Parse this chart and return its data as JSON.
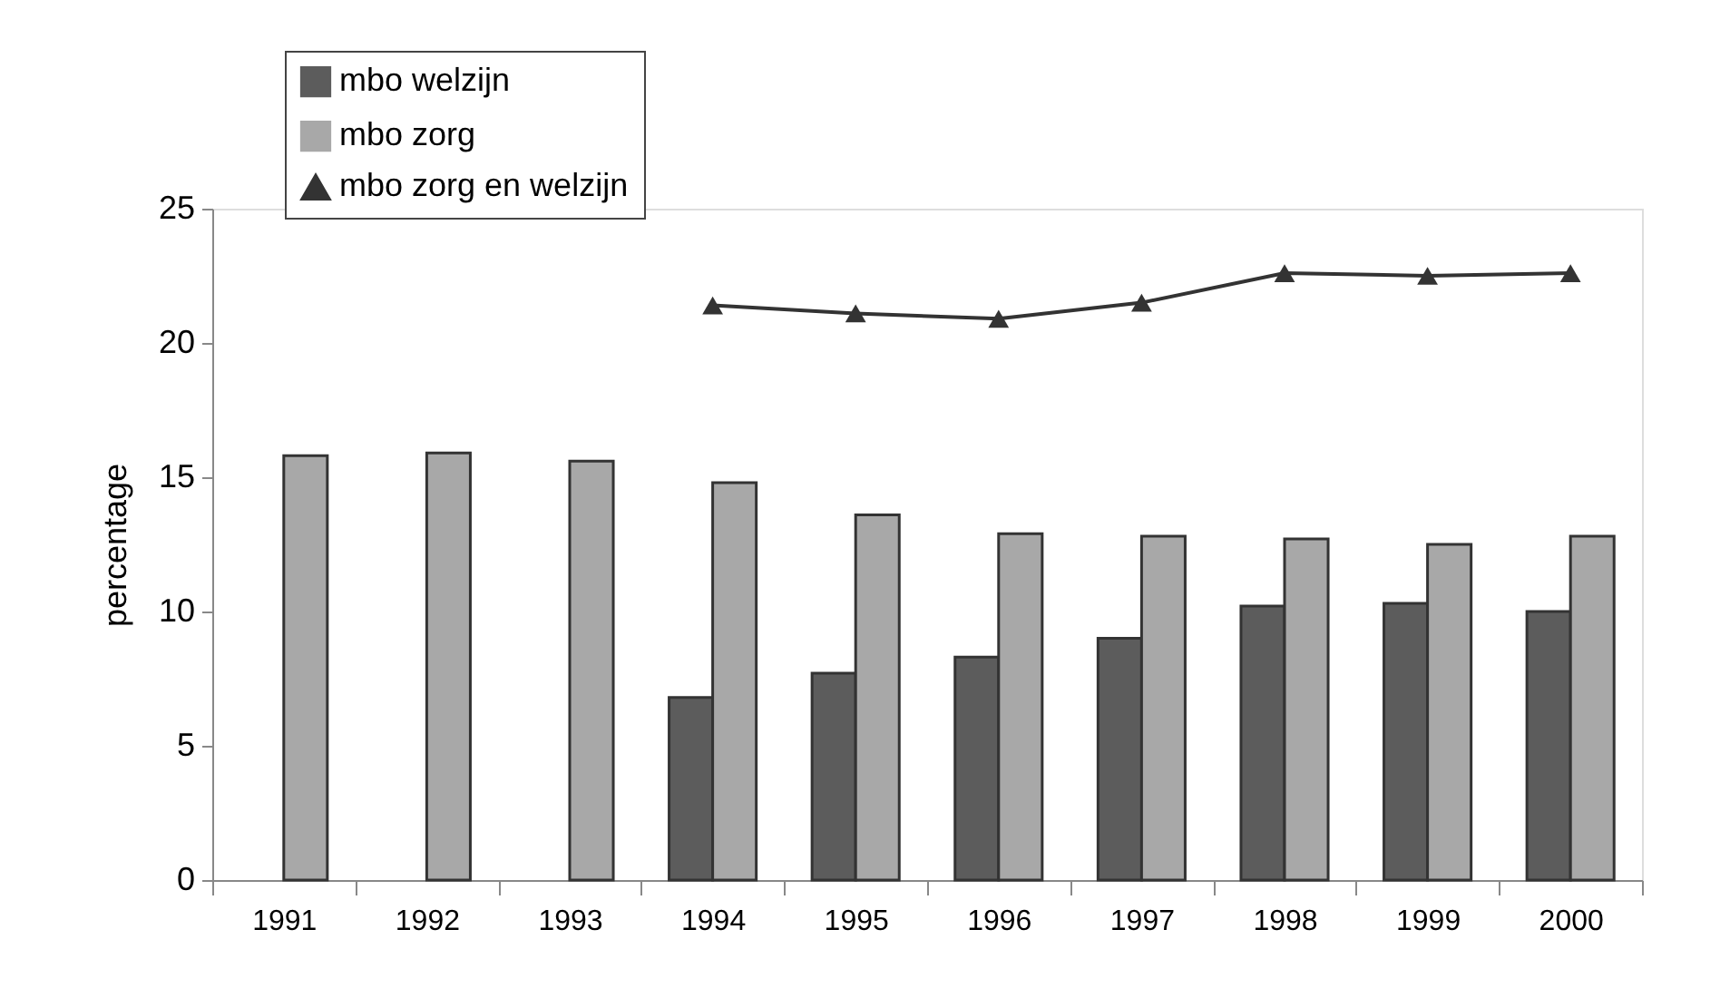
{
  "chart_data": {
    "type": "bar",
    "ylabel": "percentage",
    "categories": [
      "1991",
      "1992",
      "1993",
      "1994",
      "1995",
      "1996",
      "1997",
      "1998",
      "1999",
      "2000"
    ],
    "series": [
      {
        "name": "mbo welzijn",
        "color": "#5c5c5c",
        "values": [
          null,
          null,
          null,
          6.8,
          7.7,
          8.3,
          9.0,
          10.2,
          10.3,
          10.0
        ]
      },
      {
        "name": "mbo zorg",
        "color": "#a8a8a8",
        "values": [
          15.8,
          15.9,
          15.6,
          14.8,
          13.6,
          12.9,
          12.8,
          12.7,
          12.5,
          12.8
        ]
      },
      {
        "name": "mbo zorg en welzijn",
        "type": "line",
        "color": "#333333",
        "marker": "triangle",
        "values": [
          null,
          null,
          null,
          21.4,
          21.1,
          20.9,
          21.5,
          22.6,
          22.5,
          22.6
        ]
      }
    ],
    "ylim": [
      0,
      25
    ],
    "yticks": [
      0,
      5,
      10,
      15,
      20,
      25
    ],
    "grid": false,
    "legend": "top left"
  }
}
